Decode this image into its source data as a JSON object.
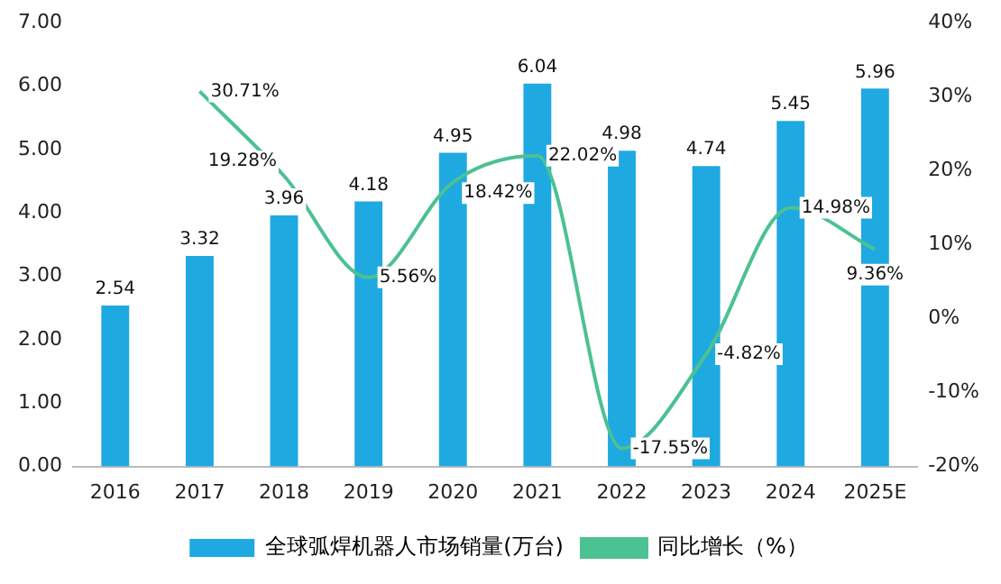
{
  "chart_data": {
    "type": "bar",
    "categories": [
      "2016",
      "2017",
      "2018",
      "2019",
      "2020",
      "2021",
      "2022",
      "2023",
      "2024",
      "2025E"
    ],
    "series": [
      {
        "name": "全球弧焊机器人市场销量(万台)",
        "color": "#1fa9e1",
        "values": [
          2.54,
          3.32,
          3.96,
          4.18,
          4.95,
          6.04,
          4.98,
          4.74,
          5.45,
          5.96
        ],
        "value_labels": [
          "2.54",
          "3.32",
          "3.96",
          "4.18",
          "4.95",
          "6.04",
          "4.98",
          "4.74",
          "5.45",
          "5.96"
        ]
      },
      {
        "name": "同比增长（%）",
        "type": "line",
        "axis": "y2",
        "color": "#4cc192",
        "values": [
          null,
          30.71,
          19.28,
          5.56,
          18.42,
          22.02,
          -17.55,
          -4.82,
          14.98,
          9.36
        ],
        "value_labels": [
          null,
          "30.71%",
          "19.28%",
          "5.56%",
          "18.42%",
          "22.02%",
          "-17.55%",
          "-4.82%",
          "14.98%",
          "9.36%"
        ]
      }
    ],
    "ylim": [
      0,
      7
    ],
    "yticks": [
      {
        "value": 0,
        "label": "0.00"
      },
      {
        "value": 1,
        "label": "1.00"
      },
      {
        "value": 2,
        "label": "2.00"
      },
      {
        "value": 3,
        "label": "3.00"
      },
      {
        "value": 4,
        "label": "4.00"
      },
      {
        "value": 5,
        "label": "5.00"
      },
      {
        "value": 6,
        "label": "6.00"
      },
      {
        "value": 7,
        "label": "7.00"
      }
    ],
    "y2lim": [
      -20,
      40
    ],
    "y2ticks": [
      {
        "value": -20,
        "label": "-20%"
      },
      {
        "value": -10,
        "label": "-10%"
      },
      {
        "value": 0,
        "label": "0%"
      },
      {
        "value": 10,
        "label": "10%"
      },
      {
        "value": 20,
        "label": "20%"
      },
      {
        "value": 30,
        "label": "30%"
      },
      {
        "value": 40,
        "label": "40%"
      }
    ],
    "grid": false,
    "legend": "bottom",
    "marker": "none"
  }
}
